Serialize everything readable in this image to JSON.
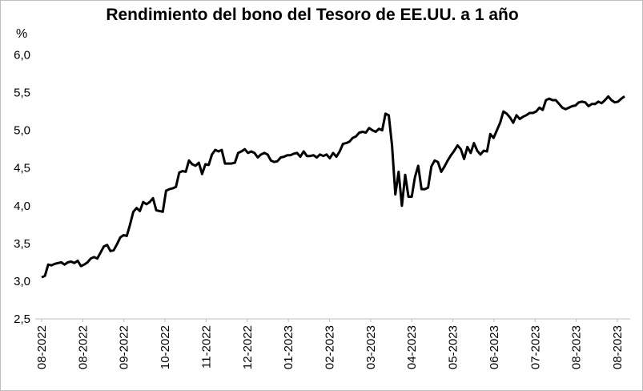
{
  "chart_data": {
    "type": "line",
    "title": "Rendimiento del bono del Tesoro de EE.UU. a 1 año",
    "ylabel": "%",
    "xlabel": "",
    "ylim": [
      2.5,
      6.0
    ],
    "yticks": [
      "2,5",
      "3,0",
      "3,5",
      "4,0",
      "4,5",
      "5,0",
      "5,5",
      "6,0"
    ],
    "xticks": [
      "08-2022",
      "08-2022",
      "09-2022",
      "10-2022",
      "11-2022",
      "12-2022",
      "01-2023",
      "02-2023",
      "03-2023",
      "04-2023",
      "05-2023",
      "06-2023",
      "07-2023",
      "08-2023",
      "08-2023"
    ],
    "grid": false,
    "legend": "none",
    "series": [
      {
        "values": [
          3.05,
          3.07,
          3.22,
          3.21,
          3.23,
          3.24,
          3.25,
          3.22,
          3.25,
          3.26,
          3.24,
          3.27,
          3.2,
          3.22,
          3.25,
          3.3,
          3.32,
          3.3,
          3.38,
          3.46,
          3.48,
          3.4,
          3.41,
          3.49,
          3.58,
          3.61,
          3.6,
          3.75,
          3.92,
          3.97,
          3.93,
          4.05,
          4.02,
          4.05,
          4.1,
          3.94,
          3.93,
          3.92,
          4.2,
          4.22,
          4.23,
          4.25,
          4.44,
          4.46,
          4.45,
          4.6,
          4.55,
          4.53,
          4.57,
          4.42,
          4.55,
          4.54,
          4.68,
          4.74,
          4.72,
          4.74,
          4.56,
          4.56,
          4.56,
          4.57,
          4.7,
          4.72,
          4.75,
          4.7,
          4.72,
          4.7,
          4.64,
          4.68,
          4.7,
          4.68,
          4.6,
          4.58,
          4.59,
          4.64,
          4.65,
          4.67,
          4.67,
          4.69,
          4.7,
          4.65,
          4.72,
          4.66,
          4.66,
          4.67,
          4.64,
          4.68,
          4.66,
          4.68,
          4.63,
          4.7,
          4.65,
          4.72,
          4.82,
          4.83,
          4.85,
          4.9,
          4.92,
          4.97,
          4.98,
          4.97,
          5.03,
          5.0,
          4.98,
          5.02,
          5.0,
          5.22,
          5.2,
          4.8,
          4.15,
          4.45,
          4.0,
          4.41,
          4.12,
          4.12,
          4.38,
          4.53,
          4.22,
          4.22,
          4.24,
          4.52,
          4.6,
          4.58,
          4.45,
          4.52,
          4.6,
          4.67,
          4.73,
          4.8,
          4.75,
          4.62,
          4.78,
          4.7,
          4.83,
          4.73,
          4.68,
          4.73,
          4.72,
          4.95,
          4.9,
          5.0,
          5.1,
          5.25,
          5.22,
          5.17,
          5.1,
          5.2,
          5.15,
          5.18,
          5.2,
          5.23,
          5.23,
          5.25,
          5.3,
          5.27,
          5.4,
          5.42,
          5.4,
          5.4,
          5.35,
          5.3,
          5.28,
          5.3,
          5.32,
          5.33,
          5.37,
          5.38,
          5.37,
          5.32,
          5.35,
          5.35,
          5.38,
          5.36,
          5.4,
          5.45,
          5.4,
          5.37,
          5.38,
          5.42,
          5.45
        ]
      }
    ]
  }
}
